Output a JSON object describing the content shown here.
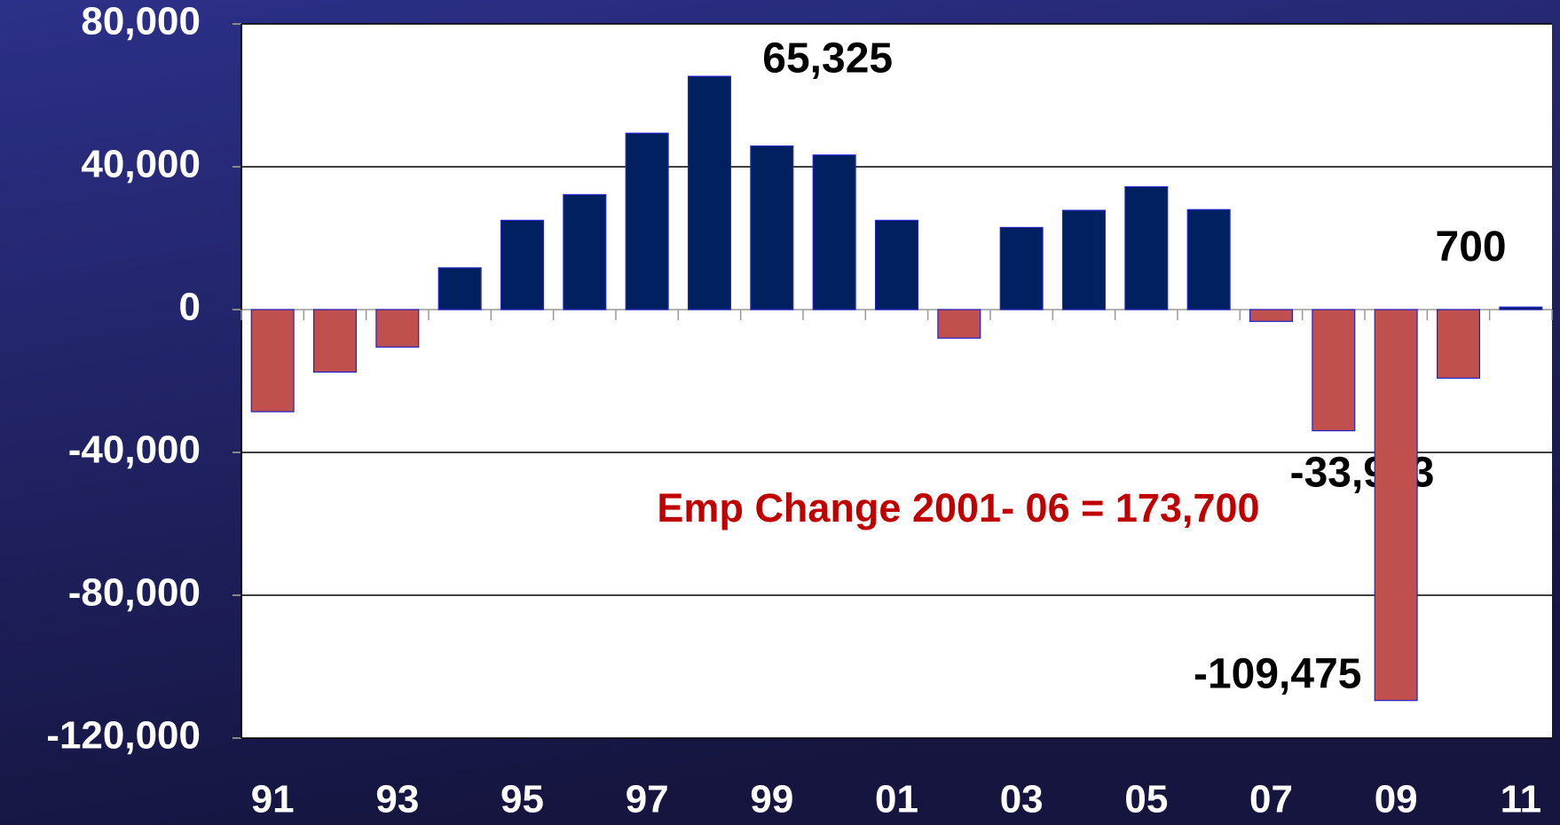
{
  "chart_data": {
    "type": "bar",
    "categories": [
      "91",
      null,
      "93",
      null,
      "95",
      null,
      "97",
      null,
      "99",
      null,
      "01",
      null,
      "03",
      null,
      "05",
      null,
      "07",
      null,
      "09",
      null,
      "11"
    ],
    "values": [
      -28600,
      -17500,
      -10500,
      11700,
      25000,
      32200,
      49400,
      65325,
      45800,
      43300,
      25000,
      -8000,
      23000,
      27800,
      34400,
      28000,
      -3300,
      -33933,
      -109475,
      -19200,
      700
    ],
    "value_labels": [
      null,
      null,
      null,
      null,
      null,
      null,
      null,
      "65,325",
      null,
      null,
      null,
      null,
      null,
      null,
      null,
      null,
      null,
      "-33,933",
      "-109,475",
      null,
      "700"
    ],
    "color": "#002060",
    "negative_color": "#c0504d",
    "ylim": [
      -120000,
      80000
    ],
    "yticks": [
      {
        "value": -120000,
        "label": "-120,000"
      },
      {
        "value": -80000,
        "label": "-80,000"
      },
      {
        "value": -40000,
        "label": "-40,000"
      },
      0,
      {
        "value": 40000,
        "label": "40,000"
      },
      {
        "value": 80000,
        "label": "80,000"
      }
    ],
    "grid": true,
    "annotations": [
      "Emp Change 2001- 06 = 173,700"
    ]
  }
}
